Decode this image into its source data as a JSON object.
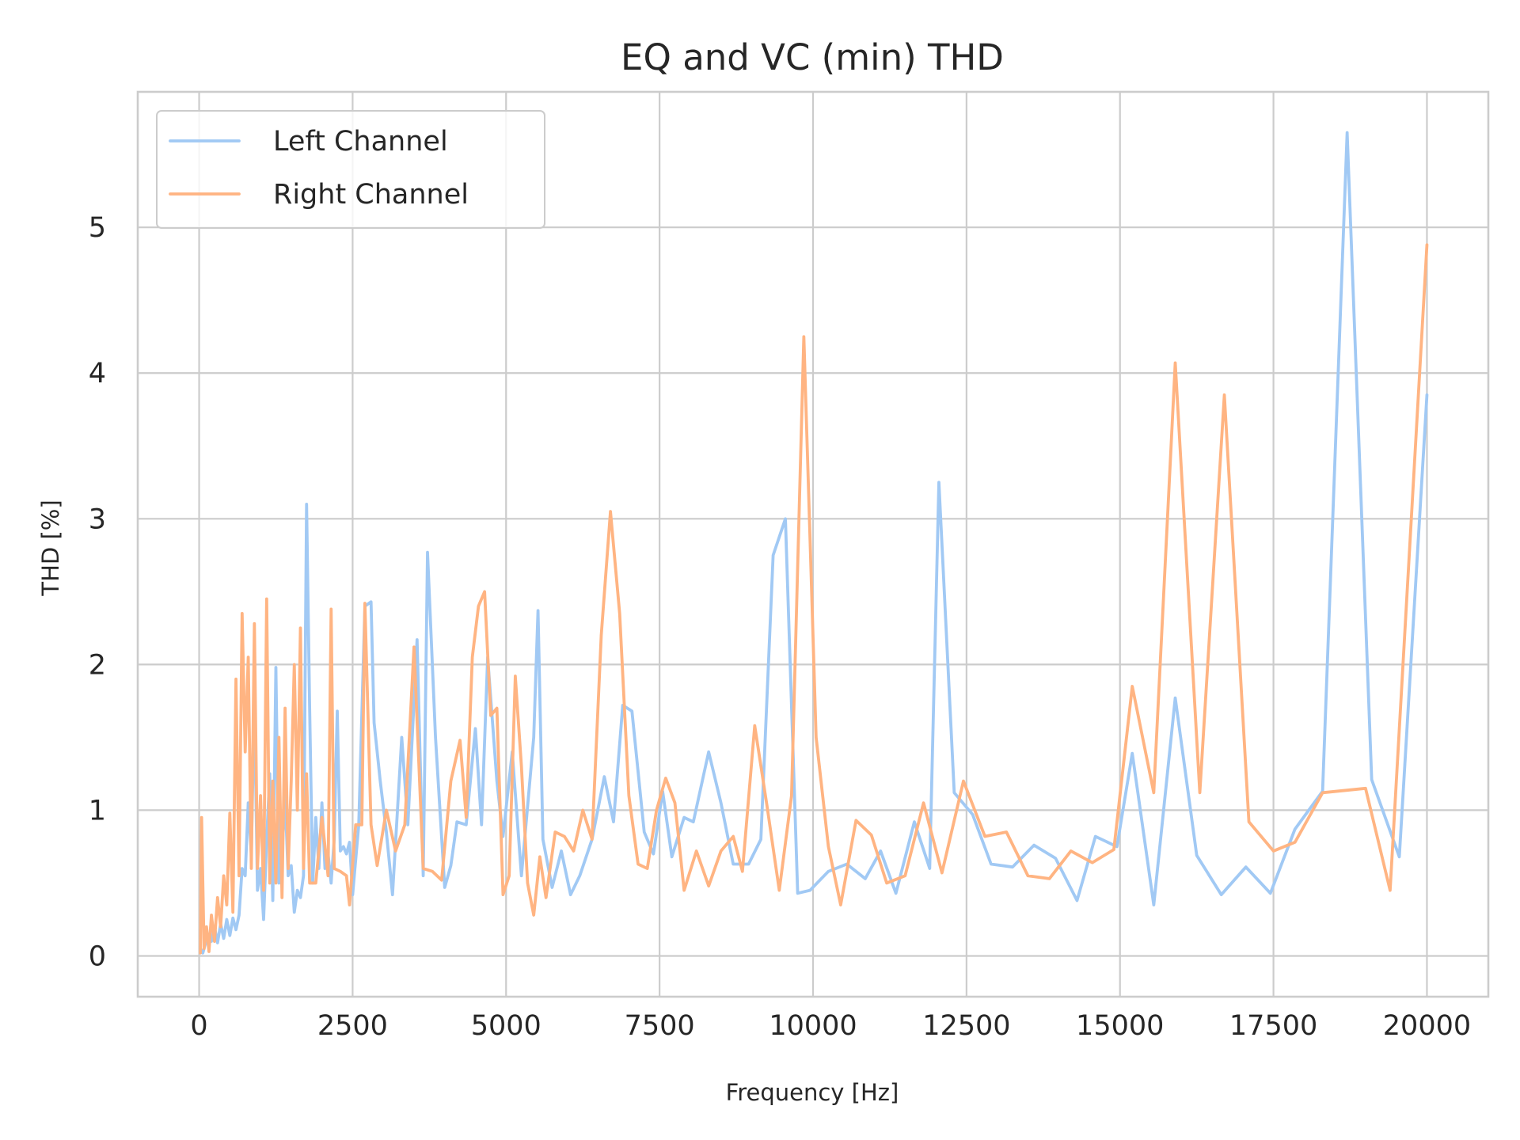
{
  "chart_data": {
    "type": "line",
    "title": "EQ and VC (min) THD",
    "xlabel": "Frequency [Hz]",
    "ylabel": "THD [%]",
    "xlim": [
      -1000,
      21000
    ],
    "ylim": [
      -0.28,
      5.93
    ],
    "xticks": [
      0,
      2500,
      5000,
      7500,
      10000,
      12500,
      15000,
      17500,
      20000
    ],
    "yticks": [
      0,
      1,
      2,
      3,
      4,
      5
    ],
    "grid": true,
    "legend": {
      "position": "top-left",
      "entries": [
        "Left Channel",
        "Right Channel"
      ]
    },
    "series": [
      {
        "name": "Left Channel",
        "color": "#a1c9f4",
        "points": [
          [
            20,
            0.05
          ],
          [
            60,
            0.02
          ],
          [
            100,
            0.08
          ],
          [
            150,
            0.15
          ],
          [
            200,
            0.1
          ],
          [
            250,
            0.2
          ],
          [
            300,
            0.09
          ],
          [
            350,
            0.22
          ],
          [
            400,
            0.12
          ],
          [
            450,
            0.25
          ],
          [
            500,
            0.14
          ],
          [
            550,
            0.26
          ],
          [
            600,
            0.18
          ],
          [
            650,
            0.28
          ],
          [
            700,
            0.6
          ],
          [
            750,
            0.55
          ],
          [
            800,
            1.05
          ],
          [
            850,
            0.7
          ],
          [
            900,
            1.78
          ],
          [
            950,
            0.45
          ],
          [
            1000,
            0.6
          ],
          [
            1050,
            0.25
          ],
          [
            1100,
            0.8
          ],
          [
            1150,
            1.25
          ],
          [
            1200,
            0.38
          ],
          [
            1250,
            1.98
          ],
          [
            1300,
            0.5
          ],
          [
            1350,
            0.7
          ],
          [
            1400,
            1.1
          ],
          [
            1450,
            0.55
          ],
          [
            1500,
            0.62
          ],
          [
            1550,
            0.3
          ],
          [
            1600,
            0.45
          ],
          [
            1650,
            0.4
          ],
          [
            1700,
            0.55
          ],
          [
            1750,
            3.1
          ],
          [
            1800,
            1.7
          ],
          [
            1850,
            0.5
          ],
          [
            1900,
            0.95
          ],
          [
            1950,
            0.6
          ],
          [
            2000,
            1.05
          ],
          [
            2050,
            0.6
          ],
          [
            2100,
            0.7
          ],
          [
            2150,
            0.5
          ],
          [
            2200,
            0.8
          ],
          [
            2250,
            1.68
          ],
          [
            2300,
            0.72
          ],
          [
            2350,
            0.75
          ],
          [
            2400,
            0.7
          ],
          [
            2450,
            0.78
          ],
          [
            2500,
            0.42
          ],
          [
            2600,
            0.9
          ],
          [
            2700,
            2.4
          ],
          [
            2800,
            2.43
          ],
          [
            2850,
            1.6
          ],
          [
            2950,
            1.2
          ],
          [
            3050,
            0.85
          ],
          [
            3150,
            0.42
          ],
          [
            3300,
            1.5
          ],
          [
            3400,
            0.9
          ],
          [
            3550,
            2.17
          ],
          [
            3650,
            0.55
          ],
          [
            3720,
            2.77
          ],
          [
            3850,
            1.5
          ],
          [
            4000,
            0.47
          ],
          [
            4100,
            0.62
          ],
          [
            4200,
            0.92
          ],
          [
            4350,
            0.9
          ],
          [
            4500,
            1.56
          ],
          [
            4600,
            0.9
          ],
          [
            4700,
            2.05
          ],
          [
            4850,
            1.2
          ],
          [
            4950,
            0.82
          ],
          [
            5100,
            1.4
          ],
          [
            5250,
            0.55
          ],
          [
            5450,
            1.5
          ],
          [
            5520,
            2.37
          ],
          [
            5600,
            0.8
          ],
          [
            5750,
            0.47
          ],
          [
            5900,
            0.72
          ],
          [
            6050,
            0.42
          ],
          [
            6200,
            0.55
          ],
          [
            6400,
            0.8
          ],
          [
            6600,
            1.23
          ],
          [
            6750,
            0.92
          ],
          [
            6900,
            1.72
          ],
          [
            7050,
            1.68
          ],
          [
            7250,
            0.85
          ],
          [
            7400,
            0.7
          ],
          [
            7550,
            1.13
          ],
          [
            7700,
            0.68
          ],
          [
            7900,
            0.95
          ],
          [
            8050,
            0.92
          ],
          [
            8300,
            1.4
          ],
          [
            8500,
            1.05
          ],
          [
            8700,
            0.63
          ],
          [
            8950,
            0.63
          ],
          [
            9150,
            0.8
          ],
          [
            9350,
            2.75
          ],
          [
            9550,
            3.0
          ],
          [
            9750,
            0.43
          ],
          [
            9950,
            0.45
          ],
          [
            10250,
            0.58
          ],
          [
            10550,
            0.63
          ],
          [
            10850,
            0.53
          ],
          [
            11100,
            0.72
          ],
          [
            11350,
            0.43
          ],
          [
            11650,
            0.92
          ],
          [
            11900,
            0.6
          ],
          [
            12050,
            3.25
          ],
          [
            12300,
            1.12
          ],
          [
            12600,
            0.97
          ],
          [
            12900,
            0.63
          ],
          [
            13250,
            0.61
          ],
          [
            13600,
            0.76
          ],
          [
            13950,
            0.67
          ],
          [
            14300,
            0.38
          ],
          [
            14600,
            0.82
          ],
          [
            14950,
            0.75
          ],
          [
            15200,
            1.39
          ],
          [
            15550,
            0.35
          ],
          [
            15900,
            1.77
          ],
          [
            16250,
            0.69
          ],
          [
            16650,
            0.42
          ],
          [
            17050,
            0.61
          ],
          [
            17450,
            0.43
          ],
          [
            17850,
            0.87
          ],
          [
            18300,
            1.13
          ],
          [
            18700,
            5.65
          ],
          [
            19100,
            1.21
          ],
          [
            19550,
            0.68
          ],
          [
            20000,
            3.85
          ]
        ]
      },
      {
        "name": "Right Channel",
        "color": "#ffb482",
        "points": [
          [
            20,
            0.02
          ],
          [
            40,
            0.95
          ],
          [
            80,
            0.05
          ],
          [
            120,
            0.2
          ],
          [
            160,
            0.03
          ],
          [
            200,
            0.28
          ],
          [
            250,
            0.1
          ],
          [
            300,
            0.4
          ],
          [
            350,
            0.2
          ],
          [
            400,
            0.55
          ],
          [
            450,
            0.35
          ],
          [
            500,
            0.98
          ],
          [
            550,
            0.3
          ],
          [
            600,
            1.9
          ],
          [
            650,
            0.55
          ],
          [
            700,
            2.35
          ],
          [
            750,
            1.4
          ],
          [
            800,
            2.05
          ],
          [
            850,
            0.6
          ],
          [
            900,
            2.28
          ],
          [
            950,
            0.6
          ],
          [
            1000,
            1.1
          ],
          [
            1050,
            0.45
          ],
          [
            1100,
            2.45
          ],
          [
            1150,
            0.5
          ],
          [
            1200,
            1.2
          ],
          [
            1250,
            0.5
          ],
          [
            1300,
            1.5
          ],
          [
            1350,
            0.4
          ],
          [
            1400,
            1.7
          ],
          [
            1450,
            0.6
          ],
          [
            1500,
            1.2
          ],
          [
            1550,
            2.0
          ],
          [
            1600,
            1.0
          ],
          [
            1650,
            2.25
          ],
          [
            1700,
            0.6
          ],
          [
            1750,
            1.25
          ],
          [
            1800,
            0.5
          ],
          [
            1900,
            0.5
          ],
          [
            2000,
            0.95
          ],
          [
            2100,
            0.55
          ],
          [
            2150,
            2.38
          ],
          [
            2200,
            0.6
          ],
          [
            2300,
            0.58
          ],
          [
            2400,
            0.55
          ],
          [
            2450,
            0.35
          ],
          [
            2550,
            0.9
          ],
          [
            2650,
            0.9
          ],
          [
            2700,
            2.42
          ],
          [
            2800,
            0.9
          ],
          [
            2900,
            0.62
          ],
          [
            3050,
            1.0
          ],
          [
            3200,
            0.72
          ],
          [
            3350,
            0.9
          ],
          [
            3500,
            2.12
          ],
          [
            3650,
            0.6
          ],
          [
            3800,
            0.58
          ],
          [
            3950,
            0.52
          ],
          [
            4100,
            1.2
          ],
          [
            4250,
            1.48
          ],
          [
            4350,
            0.95
          ],
          [
            4450,
            2.05
          ],
          [
            4550,
            2.4
          ],
          [
            4650,
            2.5
          ],
          [
            4750,
            1.65
          ],
          [
            4850,
            1.7
          ],
          [
            4950,
            0.42
          ],
          [
            5050,
            0.55
          ],
          [
            5150,
            1.92
          ],
          [
            5250,
            1.3
          ],
          [
            5350,
            0.5
          ],
          [
            5450,
            0.28
          ],
          [
            5550,
            0.68
          ],
          [
            5650,
            0.4
          ],
          [
            5800,
            0.85
          ],
          [
            5950,
            0.82
          ],
          [
            6100,
            0.72
          ],
          [
            6250,
            1.0
          ],
          [
            6400,
            0.8
          ],
          [
            6550,
            2.2
          ],
          [
            6700,
            3.05
          ],
          [
            6850,
            2.35
          ],
          [
            7000,
            1.1
          ],
          [
            7150,
            0.63
          ],
          [
            7300,
            0.6
          ],
          [
            7450,
            1.0
          ],
          [
            7600,
            1.22
          ],
          [
            7750,
            1.05
          ],
          [
            7900,
            0.45
          ],
          [
            8100,
            0.72
          ],
          [
            8300,
            0.48
          ],
          [
            8500,
            0.72
          ],
          [
            8700,
            0.82
          ],
          [
            8850,
            0.58
          ],
          [
            9050,
            1.58
          ],
          [
            9250,
            1.03
          ],
          [
            9450,
            0.45
          ],
          [
            9650,
            1.1
          ],
          [
            9850,
            4.25
          ],
          [
            10050,
            1.5
          ],
          [
            10250,
            0.75
          ],
          [
            10450,
            0.35
          ],
          [
            10700,
            0.93
          ],
          [
            10950,
            0.83
          ],
          [
            11200,
            0.5
          ],
          [
            11500,
            0.55
          ],
          [
            11800,
            1.05
          ],
          [
            12100,
            0.57
          ],
          [
            12450,
            1.2
          ],
          [
            12800,
            0.82
          ],
          [
            13150,
            0.85
          ],
          [
            13500,
            0.55
          ],
          [
            13850,
            0.53
          ],
          [
            14200,
            0.72
          ],
          [
            14550,
            0.64
          ],
          [
            14900,
            0.73
          ],
          [
            15200,
            1.85
          ],
          [
            15550,
            1.12
          ],
          [
            15900,
            4.07
          ],
          [
            16300,
            1.12
          ],
          [
            16700,
            3.85
          ],
          [
            17100,
            0.92
          ],
          [
            17500,
            0.72
          ],
          [
            17850,
            0.78
          ],
          [
            18300,
            1.12
          ],
          [
            19000,
            1.15
          ],
          [
            19400,
            0.45
          ],
          [
            20000,
            4.88
          ]
        ]
      }
    ]
  }
}
